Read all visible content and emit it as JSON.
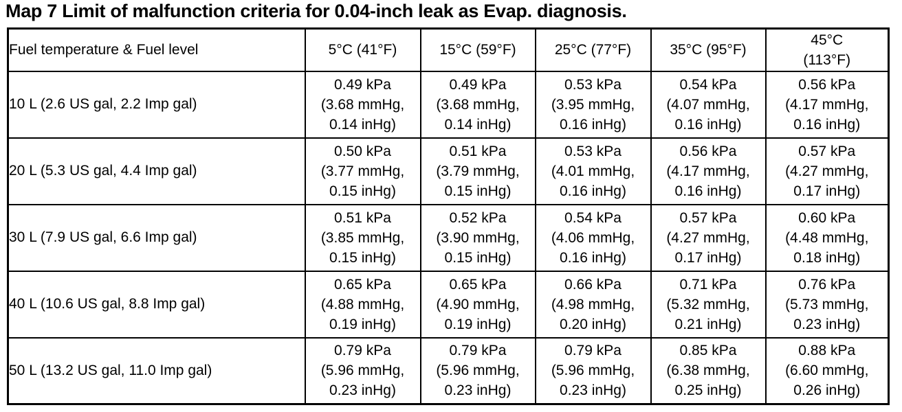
{
  "page": {
    "title": "Map 7 Limit of malfunction criteria for 0.04-inch leak as Evap. diagnosis."
  },
  "table": {
    "columns": [
      {
        "lines": [
          "Fuel temperature & Fuel level"
        ]
      },
      {
        "lines": [
          "5°C (41°F)"
        ]
      },
      {
        "lines": [
          "15°C (59°F)"
        ]
      },
      {
        "lines": [
          "25°C (77°F)"
        ]
      },
      {
        "lines": [
          "35°C (95°F)"
        ]
      },
      {
        "lines": [
          "45°C",
          "(113°F)"
        ]
      }
    ],
    "rows": [
      {
        "label": "10 L (2.6 US gal, 2.2 Imp gal)",
        "cells": [
          [
            "0.49 kPa",
            "(3.68 mmHg,",
            "0.14 inHg)"
          ],
          [
            "0.49 kPa",
            "(3.68 mmHg,",
            "0.14 inHg)"
          ],
          [
            "0.53 kPa",
            "(3.95 mmHg,",
            "0.16 inHg)"
          ],
          [
            "0.54 kPa",
            "(4.07 mmHg,",
            "0.16 inHg)"
          ],
          [
            "0.56 kPa",
            "(4.17 mmHg,",
            "0.16 inHg)"
          ]
        ]
      },
      {
        "label": "20 L (5.3 US gal, 4.4 Imp gal)",
        "cells": [
          [
            "0.50 kPa",
            "(3.77 mmHg,",
            "0.15 inHg)"
          ],
          [
            "0.51 kPa",
            "(3.79 mmHg,",
            "0.15 inHg)"
          ],
          [
            "0.53 kPa",
            "(4.01 mmHg,",
            "0.16 inHg)"
          ],
          [
            "0.56 kPa",
            "(4.17 mmHg,",
            "0.16 inHg)"
          ],
          [
            "0.57 kPa",
            "(4.27 mmHg,",
            "0.17 inHg)"
          ]
        ]
      },
      {
        "label": "30 L (7.9 US gal, 6.6 Imp gal)",
        "cells": [
          [
            "0.51 kPa",
            "(3.85 mmHg,",
            "0.15 inHg)"
          ],
          [
            "0.52 kPa",
            "(3.90 mmHg,",
            "0.15 inHg)"
          ],
          [
            "0.54 kPa",
            "(4.06 mmHg,",
            "0.16 inHg)"
          ],
          [
            "0.57 kPa",
            "(4.27 mmHg,",
            "0.17 inHg)"
          ],
          [
            "0.60 kPa",
            "(4.48 mmHg,",
            "0.18 inHg)"
          ]
        ]
      },
      {
        "label": "40 L (10.6 US gal, 8.8 Imp gal)",
        "cells": [
          [
            "0.65 kPa",
            "(4.88 mmHg,",
            "0.19 inHg)"
          ],
          [
            "0.65 kPa",
            "(4.90 mmHg,",
            "0.19 inHg)"
          ],
          [
            "0.66 kPa",
            "(4.98 mmHg,",
            "0.20 inHg)"
          ],
          [
            "0.71 kPa",
            "(5.32 mmHg,",
            "0.21 inHg)"
          ],
          [
            "0.76 kPa",
            "(5.73 mmHg,",
            "0.23 inHg)"
          ]
        ]
      },
      {
        "label": "50 L (13.2 US gal, 11.0 Imp gal)",
        "cells": [
          [
            "0.79 kPa",
            "(5.96 mmHg,",
            "0.23 inHg)"
          ],
          [
            "0.79 kPa",
            "(5.96 mmHg,",
            "0.23 inHg)"
          ],
          [
            "0.79 kPa",
            "(5.96 mmHg,",
            "0.23 inHg)"
          ],
          [
            "0.85 kPa",
            "(6.38 mmHg,",
            "0.25 inHg)"
          ],
          [
            "0.88 kPa",
            "(6.60 mmHg,",
            "0.26 inHg)"
          ]
        ]
      }
    ]
  }
}
